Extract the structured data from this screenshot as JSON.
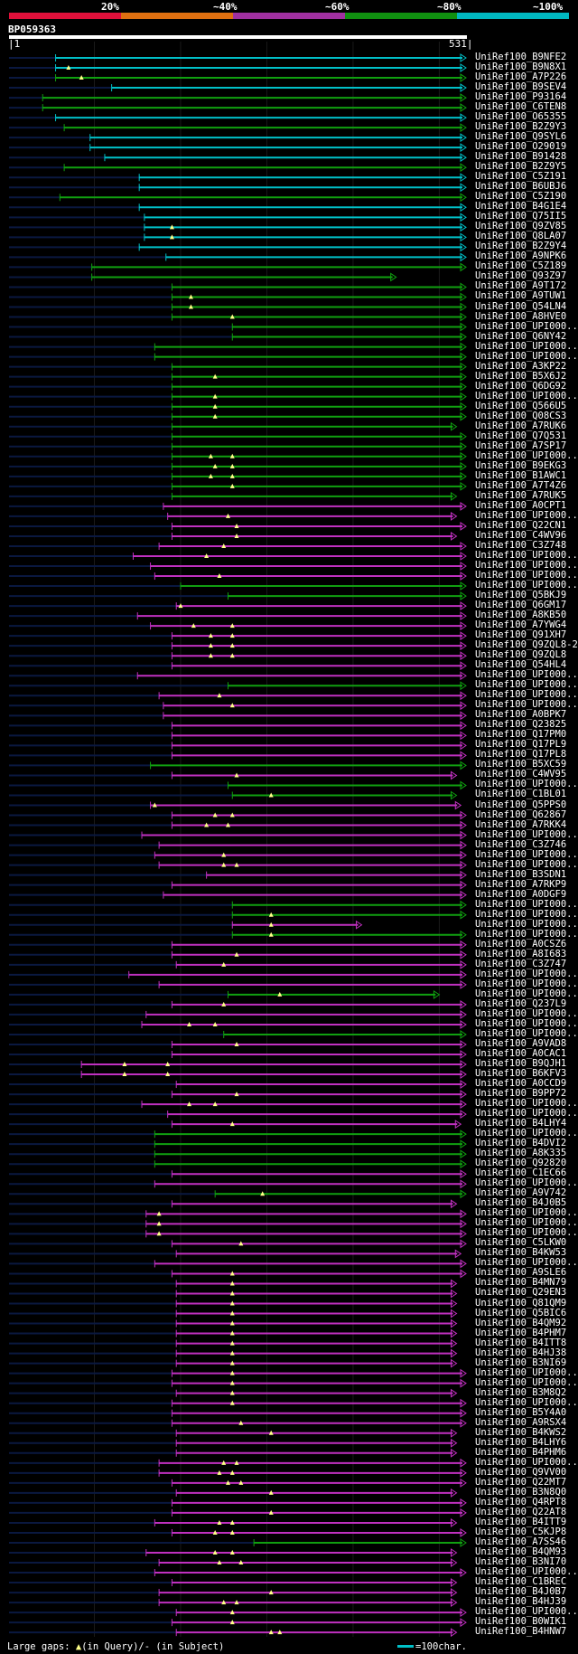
{
  "legend": {
    "labels": [
      "20%",
      "~40%",
      "~60%",
      "~80%",
      "~100%"
    ],
    "colors": [
      "#e0103a",
      "#e07010",
      "#a030a0",
      "#109010",
      "#00b8c0"
    ]
  },
  "query": {
    "name": "BP059363",
    "start": "1",
    "end": "531"
  },
  "colors": {
    "identity_colors": [
      "#00c0c8",
      "#10a010",
      "#c030c0"
    ],
    "gap_marker": "#ffff88"
  },
  "footer": {
    "gap_prefix": "Large gaps:",
    "gap_symbol": "▲",
    "gap_query_text": "(in Query)/",
    "gap_subject_symbol": "-",
    "gap_subject_text": "(in Subject)",
    "scale_text": "=100char."
  },
  "hits": [
    {
      "name": "UniRef100_B9NFE2",
      "s": 55,
      "e": 531,
      "c": 0,
      "g": []
    },
    {
      "name": "UniRef100_B9N8X1",
      "s": 55,
      "e": 531,
      "c": 0,
      "g": [
        70
      ]
    },
    {
      "name": "UniRef100_A7P226",
      "s": 55,
      "e": 531,
      "c": 1,
      "g": [
        85
      ]
    },
    {
      "name": "UniRef100_B9SEV4",
      "s": 120,
      "e": 531,
      "c": 0,
      "g": []
    },
    {
      "name": "UniRef100_P93164",
      "s": 40,
      "e": 531,
      "c": 1,
      "g": []
    },
    {
      "name": "UniRef100_C6TEN8",
      "s": 40,
      "e": 531,
      "c": 1,
      "g": []
    },
    {
      "name": "UniRef100_O65355",
      "s": 55,
      "e": 531,
      "c": 0,
      "g": []
    },
    {
      "name": "UniRef100_B2Z9Y3",
      "s": 65,
      "e": 531,
      "c": 1,
      "g": []
    },
    {
      "name": "UniRef100_Q9SYL6",
      "s": 95,
      "e": 531,
      "c": 0,
      "g": []
    },
    {
      "name": "UniRef100_O29019",
      "s": 95,
      "e": 531,
      "c": 0,
      "g": []
    },
    {
      "name": "UniRef100_B91428",
      "s": 112,
      "e": 531,
      "c": 0,
      "g": []
    },
    {
      "name": "UniRef100_B2Z9Y5",
      "s": 65,
      "e": 531,
      "c": 1,
      "g": []
    },
    {
      "name": "UniRef100_C5Z191",
      "s": 152,
      "e": 531,
      "c": 0,
      "g": []
    },
    {
      "name": "UniRef100_B6UBJ6",
      "s": 152,
      "e": 531,
      "c": 0,
      "g": []
    },
    {
      "name": "UniRef100_C5Z190",
      "s": 60,
      "e": 531,
      "c": 1,
      "g": []
    },
    {
      "name": "UniRef100_B4G1E4",
      "s": 152,
      "e": 531,
      "c": 0,
      "g": []
    },
    {
      "name": "UniRef100_Q75II5",
      "s": 158,
      "e": 531,
      "c": 0,
      "g": []
    },
    {
      "name": "UniRef100_Q9ZV85",
      "s": 158,
      "e": 531,
      "c": 0,
      "g": [
        190
      ]
    },
    {
      "name": "UniRef100_Q8LA07",
      "s": 158,
      "e": 531,
      "c": 0,
      "g": [
        190
      ]
    },
    {
      "name": "UniRef100_B2Z9Y4",
      "s": 152,
      "e": 531,
      "c": 0,
      "g": []
    },
    {
      "name": "UniRef100_A9NPK6",
      "s": 183,
      "e": 531,
      "c": 0,
      "g": []
    },
    {
      "name": "UniRef100_C5Z189",
      "s": 97,
      "e": 531,
      "c": 1,
      "g": []
    },
    {
      "name": "UniRef100_Q93Z97",
      "s": 97,
      "e": 450,
      "c": 1,
      "g": []
    },
    {
      "name": "UniRef100_A9T172",
      "s": 190,
      "e": 531,
      "c": 1,
      "g": []
    },
    {
      "name": "UniRef100_A9TUW1",
      "s": 190,
      "e": 531,
      "c": 1,
      "g": [
        212
      ]
    },
    {
      "name": "UniRef100_Q54LN4",
      "s": 190,
      "e": 531,
      "c": 1,
      "g": [
        212
      ]
    },
    {
      "name": "UniRef100_A8HVE0",
      "s": 190,
      "e": 531,
      "c": 1,
      "g": [
        260
      ]
    },
    {
      "name": "UniRef100_UPI000...",
      "s": 260,
      "e": 531,
      "c": 1,
      "g": []
    },
    {
      "name": "UniRef100_Q6NY42",
      "s": 260,
      "e": 531,
      "c": 1,
      "g": []
    },
    {
      "name": "UniRef100_UPI000...",
      "s": 170,
      "e": 531,
      "c": 1,
      "g": []
    },
    {
      "name": "UniRef100_UPI000...",
      "s": 170,
      "e": 531,
      "c": 1,
      "g": []
    },
    {
      "name": "UniRef100_A3KP22",
      "s": 190,
      "e": 531,
      "c": 1,
      "g": []
    },
    {
      "name": "UniRef100_B5X6J2",
      "s": 190,
      "e": 531,
      "c": 1,
      "g": [
        240
      ]
    },
    {
      "name": "UniRef100_Q6DG92",
      "s": 190,
      "e": 531,
      "c": 1,
      "g": []
    },
    {
      "name": "UniRef100_UPI000...",
      "s": 190,
      "e": 531,
      "c": 1,
      "g": [
        240
      ]
    },
    {
      "name": "UniRef100_Q566U5",
      "s": 190,
      "e": 531,
      "c": 1,
      "g": [
        240
      ]
    },
    {
      "name": "UniRef100_Q08CS3",
      "s": 190,
      "e": 531,
      "c": 1,
      "g": [
        240
      ]
    },
    {
      "name": "UniRef100_A7RUK6",
      "s": 190,
      "e": 520,
      "c": 1,
      "g": []
    },
    {
      "name": "UniRef100_Q7Q531",
      "s": 190,
      "e": 531,
      "c": 1,
      "g": []
    },
    {
      "name": "UniRef100_A7SP17",
      "s": 190,
      "e": 531,
      "c": 1,
      "g": []
    },
    {
      "name": "UniRef100_UPI000...",
      "s": 190,
      "e": 531,
      "c": 1,
      "g": [
        235,
        260
      ]
    },
    {
      "name": "UniRef100_B9EKG3",
      "s": 190,
      "e": 531,
      "c": 1,
      "g": [
        240,
        260
      ]
    },
    {
      "name": "UniRef100_B1AWC1",
      "s": 190,
      "e": 531,
      "c": 1,
      "g": [
        235,
        260
      ]
    },
    {
      "name": "UniRef100_A7T4Z6",
      "s": 190,
      "e": 531,
      "c": 1,
      "g": [
        260
      ]
    },
    {
      "name": "UniRef100_A7RUK5",
      "s": 190,
      "e": 520,
      "c": 1,
      "g": []
    },
    {
      "name": "UniRef100_A0CPT1",
      "s": 180,
      "e": 531,
      "c": 2,
      "g": []
    },
    {
      "name": "UniRef100_UPI000...",
      "s": 185,
      "e": 520,
      "c": 2,
      "g": [
        255
      ]
    },
    {
      "name": "UniRef100_Q22CN1",
      "s": 190,
      "e": 531,
      "c": 2,
      "g": [
        265
      ]
    },
    {
      "name": "UniRef100_C4WV96",
      "s": 190,
      "e": 520,
      "c": 2,
      "g": [
        265
      ]
    },
    {
      "name": "UniRef100_C3Z748",
      "s": 175,
      "e": 531,
      "c": 2,
      "g": [
        250
      ]
    },
    {
      "name": "UniRef100_UPI000...",
      "s": 145,
      "e": 531,
      "c": 2,
      "g": [
        230
      ]
    },
    {
      "name": "UniRef100_UPI000...",
      "s": 165,
      "e": 531,
      "c": 2,
      "g": []
    },
    {
      "name": "UniRef100_UPI000...",
      "s": 170,
      "e": 531,
      "c": 2,
      "g": [
        245
      ]
    },
    {
      "name": "UniRef100_UPI000...",
      "s": 200,
      "e": 531,
      "c": 1,
      "g": []
    },
    {
      "name": "UniRef100_Q5BKJ9",
      "s": 255,
      "e": 531,
      "c": 1,
      "g": []
    },
    {
      "name": "UniRef100_Q6GM17",
      "s": 195,
      "e": 531,
      "c": 2,
      "g": [
        200
      ]
    },
    {
      "name": "UniRef100_A8KB50",
      "s": 150,
      "e": 531,
      "c": 2,
      "g": []
    },
    {
      "name": "UniRef100_A7YWG4",
      "s": 165,
      "e": 531,
      "c": 2,
      "g": [
        215,
        260
      ]
    },
    {
      "name": "UniRef100_Q91XH7",
      "s": 190,
      "e": 531,
      "c": 2,
      "g": [
        235,
        260
      ]
    },
    {
      "name": "UniRef100_Q9ZQL8-2",
      "s": 190,
      "e": 531,
      "c": 2,
      "g": [
        235,
        260
      ]
    },
    {
      "name": "UniRef100_Q9ZQL8",
      "s": 190,
      "e": 531,
      "c": 2,
      "g": [
        235,
        260
      ]
    },
    {
      "name": "UniRef100_Q54HL4",
      "s": 190,
      "e": 531,
      "c": 2,
      "g": []
    },
    {
      "name": "UniRef100_UPI000...",
      "s": 150,
      "e": 531,
      "c": 2,
      "g": []
    },
    {
      "name": "UniRef100_UPI000...",
      "s": 255,
      "e": 531,
      "c": 1,
      "g": []
    },
    {
      "name": "UniRef100_UPI000...",
      "s": 175,
      "e": 531,
      "c": 2,
      "g": [
        245
      ]
    },
    {
      "name": "UniRef100_UPI000...",
      "s": 180,
      "e": 531,
      "c": 2,
      "g": [
        260
      ]
    },
    {
      "name": "UniRef100_A0BPK7",
      "s": 180,
      "e": 531,
      "c": 2,
      "g": []
    },
    {
      "name": "UniRef100_Q23825",
      "s": 190,
      "e": 531,
      "c": 2,
      "g": []
    },
    {
      "name": "UniRef100_Q17PM0",
      "s": 190,
      "e": 531,
      "c": 2,
      "g": []
    },
    {
      "name": "UniRef100_Q17PL9",
      "s": 190,
      "e": 531,
      "c": 2,
      "g": []
    },
    {
      "name": "UniRef100_Q17PL8",
      "s": 190,
      "e": 531,
      "c": 2,
      "g": []
    },
    {
      "name": "UniRef100_B5XC59",
      "s": 165,
      "e": 531,
      "c": 1,
      "g": []
    },
    {
      "name": "UniRef100_C4WV95",
      "s": 190,
      "e": 520,
      "c": 2,
      "g": [
        265
      ]
    },
    {
      "name": "UniRef100_UPI000...",
      "s": 255,
      "e": 531,
      "c": 1,
      "g": []
    },
    {
      "name": "UniRef100_C1BL01",
      "s": 260,
      "e": 520,
      "c": 1,
      "g": [
        305
      ]
    },
    {
      "name": "UniRef100_Q5PPS0",
      "s": 165,
      "e": 525,
      "c": 2,
      "g": [
        170
      ]
    },
    {
      "name": "UniRef100_Q62867",
      "s": 190,
      "e": 531,
      "c": 2,
      "g": [
        240,
        260
      ]
    },
    {
      "name": "UniRef100_A7RKK4",
      "s": 190,
      "e": 531,
      "c": 2,
      "g": [
        230,
        255
      ]
    },
    {
      "name": "UniRef100_UPI000...",
      "s": 155,
      "e": 531,
      "c": 2,
      "g": []
    },
    {
      "name": "UniRef100_C3Z746",
      "s": 175,
      "e": 531,
      "c": 2,
      "g": []
    },
    {
      "name": "UniRef100_UPI000...",
      "s": 170,
      "e": 531,
      "c": 2,
      "g": [
        250
      ]
    },
    {
      "name": "UniRef100_UPI000...",
      "s": 175,
      "e": 531,
      "c": 2,
      "g": [
        250,
        265
      ]
    },
    {
      "name": "UniRef100_B3SDN1",
      "s": 230,
      "e": 531,
      "c": 2,
      "g": []
    },
    {
      "name": "UniRef100_A7RKP9",
      "s": 190,
      "e": 531,
      "c": 2,
      "g": []
    },
    {
      "name": "UniRef100_A0DGF9",
      "s": 180,
      "e": 531,
      "c": 2,
      "g": []
    },
    {
      "name": "UniRef100_UPI000...",
      "s": 260,
      "e": 531,
      "c": 1,
      "g": []
    },
    {
      "name": "UniRef100_UPI000...",
      "s": 260,
      "e": 531,
      "c": 1,
      "g": [
        305
      ]
    },
    {
      "name": "UniRef100_UPI000...",
      "s": 260,
      "e": 410,
      "c": 2,
      "g": [
        305
      ]
    },
    {
      "name": "UniRef100_UPI000...",
      "s": 260,
      "e": 531,
      "c": 1,
      "g": [
        305
      ]
    },
    {
      "name": "UniRef100_A0CSZ6",
      "s": 190,
      "e": 531,
      "c": 2,
      "g": []
    },
    {
      "name": "UniRef100_A8I683",
      "s": 190,
      "e": 531,
      "c": 2,
      "g": [
        265
      ]
    },
    {
      "name": "UniRef100_C3Z747",
      "s": 195,
      "e": 531,
      "c": 2,
      "g": [
        250
      ]
    },
    {
      "name": "UniRef100_UPI000...",
      "s": 140,
      "e": 531,
      "c": 2,
      "g": []
    },
    {
      "name": "UniRef100_UPI000...",
      "s": 175,
      "e": 531,
      "c": 2,
      "g": []
    },
    {
      "name": "UniRef100_UPI000...",
      "s": 255,
      "e": 500,
      "c": 1,
      "g": [
        315
      ]
    },
    {
      "name": "UniRef100_Q237L9",
      "s": 190,
      "e": 531,
      "c": 2,
      "g": [
        250
      ]
    },
    {
      "name": "UniRef100_UPI000...",
      "s": 160,
      "e": 531,
      "c": 2,
      "g": []
    },
    {
      "name": "UniRef100_UPI000...",
      "s": 155,
      "e": 531,
      "c": 2,
      "g": [
        210,
        240
      ]
    },
    {
      "name": "UniRef100_UPI000...",
      "s": 250,
      "e": 531,
      "c": 1,
      "g": []
    },
    {
      "name": "UniRef100_A9VAD8",
      "s": 190,
      "e": 531,
      "c": 2,
      "g": [
        265
      ]
    },
    {
      "name": "UniRef100_A0CAC1",
      "s": 190,
      "e": 531,
      "c": 2,
      "g": []
    },
    {
      "name": "UniRef100_B9QJH1",
      "s": 85,
      "e": 531,
      "c": 2,
      "g": [
        135,
        185
      ]
    },
    {
      "name": "UniRef100_B6KFV3",
      "s": 85,
      "e": 531,
      "c": 2,
      "g": [
        135,
        185
      ]
    },
    {
      "name": "UniRef100_A0CCD9",
      "s": 195,
      "e": 531,
      "c": 2,
      "g": []
    },
    {
      "name": "UniRef100_B9PP72",
      "s": 190,
      "e": 531,
      "c": 2,
      "g": [
        265
      ]
    },
    {
      "name": "UniRef100_UPI000...",
      "s": 155,
      "e": 531,
      "c": 2,
      "g": [
        210,
        240
      ]
    },
    {
      "name": "UniRef100_UPI000...",
      "s": 185,
      "e": 531,
      "c": 2,
      "g": []
    },
    {
      "name": "UniRef100_B4LHY4",
      "s": 190,
      "e": 525,
      "c": 2,
      "g": [
        260
      ]
    },
    {
      "name": "UniRef100_UPI000...",
      "s": 170,
      "e": 531,
      "c": 1,
      "g": []
    },
    {
      "name": "UniRef100_B4DVI2",
      "s": 170,
      "e": 531,
      "c": 1,
      "g": []
    },
    {
      "name": "UniRef100_A8K335",
      "s": 170,
      "e": 531,
      "c": 1,
      "g": []
    },
    {
      "name": "UniRef100_Q92820",
      "s": 170,
      "e": 531,
      "c": 1,
      "g": []
    },
    {
      "name": "UniRef100_C1EC66",
      "s": 190,
      "e": 531,
      "c": 2,
      "g": []
    },
    {
      "name": "UniRef100_UPI000...",
      "s": 170,
      "e": 531,
      "c": 2,
      "g": []
    },
    {
      "name": "UniRef100_A9V742",
      "s": 240,
      "e": 531,
      "c": 1,
      "g": [
        295
      ]
    },
    {
      "name": "UniRef100_B4J0B5",
      "s": 190,
      "e": 520,
      "c": 2,
      "g": []
    },
    {
      "name": "UniRef100_UPI000...",
      "s": 160,
      "e": 531,
      "c": 2,
      "g": [
        175
      ]
    },
    {
      "name": "UniRef100_UPI000...",
      "s": 160,
      "e": 531,
      "c": 2,
      "g": [
        175
      ]
    },
    {
      "name": "UniRef100_UPI000...",
      "s": 160,
      "e": 531,
      "c": 2,
      "g": [
        175
      ]
    },
    {
      "name": "UniRef100_C5LKW0",
      "s": 190,
      "e": 531,
      "c": 2,
      "g": [
        270
      ]
    },
    {
      "name": "UniRef100_B4KW53",
      "s": 195,
      "e": 525,
      "c": 2,
      "g": []
    },
    {
      "name": "UniRef100_UPI000...",
      "s": 170,
      "e": 531,
      "c": 2,
      "g": []
    },
    {
      "name": "UniRef100_A9SLE6",
      "s": 190,
      "e": 531,
      "c": 2,
      "g": [
        260
      ]
    },
    {
      "name": "UniRef100_B4MN79",
      "s": 195,
      "e": 520,
      "c": 2,
      "g": [
        260
      ]
    },
    {
      "name": "UniRef100_Q29EN3",
      "s": 195,
      "e": 520,
      "c": 2,
      "g": [
        260
      ]
    },
    {
      "name": "UniRef100_Q81QM9",
      "s": 195,
      "e": 520,
      "c": 2,
      "g": [
        260
      ]
    },
    {
      "name": "UniRef100_Q5BIC6",
      "s": 195,
      "e": 520,
      "c": 2,
      "g": [
        260
      ]
    },
    {
      "name": "UniRef100_B4QM92",
      "s": 195,
      "e": 520,
      "c": 2,
      "g": [
        260
      ]
    },
    {
      "name": "UniRef100_B4PHM7",
      "s": 195,
      "e": 520,
      "c": 2,
      "g": [
        260
      ]
    },
    {
      "name": "UniRef100_B4ITT8",
      "s": 195,
      "e": 520,
      "c": 2,
      "g": [
        260
      ]
    },
    {
      "name": "UniRef100_B4HJ38",
      "s": 195,
      "e": 520,
      "c": 2,
      "g": [
        260
      ]
    },
    {
      "name": "UniRef100_B3NI69",
      "s": 195,
      "e": 520,
      "c": 2,
      "g": [
        260
      ]
    },
    {
      "name": "UniRef100_UPI000...",
      "s": 190,
      "e": 531,
      "c": 2,
      "g": [
        260
      ]
    },
    {
      "name": "UniRef100_UPI000...",
      "s": 190,
      "e": 531,
      "c": 2,
      "g": [
        260
      ]
    },
    {
      "name": "UniRef100_B3M8Q2",
      "s": 195,
      "e": 520,
      "c": 2,
      "g": [
        260
      ]
    },
    {
      "name": "UniRef100_UPI000...",
      "s": 190,
      "e": 531,
      "c": 2,
      "g": [
        260
      ]
    },
    {
      "name": "UniRef100_B5Y4A0",
      "s": 190,
      "e": 531,
      "c": 2,
      "g": []
    },
    {
      "name": "UniRef100_A9RSX4",
      "s": 190,
      "e": 531,
      "c": 2,
      "g": [
        270
      ]
    },
    {
      "name": "UniRef100_B4KWS2",
      "s": 195,
      "e": 520,
      "c": 2,
      "g": [
        305
      ]
    },
    {
      "name": "UniRef100_B4LHY6",
      "s": 195,
      "e": 520,
      "c": 2,
      "g": []
    },
    {
      "name": "UniRef100_B4PHM6",
      "s": 195,
      "e": 520,
      "c": 2,
      "g": []
    },
    {
      "name": "UniRef100_UPI000...",
      "s": 175,
      "e": 531,
      "c": 2,
      "g": [
        250,
        265
      ]
    },
    {
      "name": "UniRef100_Q9VV00",
      "s": 175,
      "e": 531,
      "c": 2,
      "g": [
        245,
        260
      ]
    },
    {
      "name": "UniRef100_Q22MT7",
      "s": 190,
      "e": 531,
      "c": 2,
      "g": [
        255,
        270
      ]
    },
    {
      "name": "UniRef100_B3N8Q0",
      "s": 195,
      "e": 520,
      "c": 2,
      "g": [
        305
      ]
    },
    {
      "name": "UniRef100_Q4RPT8",
      "s": 190,
      "e": 531,
      "c": 2,
      "g": []
    },
    {
      "name": "UniRef100_Q22AT8",
      "s": 190,
      "e": 531,
      "c": 2,
      "g": [
        305
      ]
    },
    {
      "name": "UniRef100_B4ITT9",
      "s": 170,
      "e": 520,
      "c": 2,
      "g": [
        245,
        260
      ]
    },
    {
      "name": "UniRef100_C5KJP8",
      "s": 190,
      "e": 531,
      "c": 2,
      "g": [
        240,
        260
      ]
    },
    {
      "name": "UniRef100_A7SS46",
      "s": 285,
      "e": 531,
      "c": 1,
      "g": []
    },
    {
      "name": "UniRef100_B4QM93",
      "s": 160,
      "e": 520,
      "c": 2,
      "g": [
        240,
        260
      ]
    },
    {
      "name": "UniRef100_B3NI70",
      "s": 175,
      "e": 520,
      "c": 2,
      "g": [
        245,
        270
      ]
    },
    {
      "name": "UniRef100_UPI000...",
      "s": 170,
      "e": 531,
      "c": 2,
      "g": []
    },
    {
      "name": "UniRef100_C1BREC",
      "s": 190,
      "e": 520,
      "c": 2,
      "g": []
    },
    {
      "name": "UniRef100_B4J0B7",
      "s": 175,
      "e": 520,
      "c": 2,
      "g": [
        305
      ]
    },
    {
      "name": "UniRef100_B4HJ39",
      "s": 175,
      "e": 520,
      "c": 2,
      "g": [
        250,
        265
      ]
    },
    {
      "name": "UniRef100_UPI000...",
      "s": 195,
      "e": 531,
      "c": 2,
      "g": [
        260
      ]
    },
    {
      "name": "UniRef100_B0WIK1",
      "s": 190,
      "e": 531,
      "c": 2,
      "g": [
        260
      ]
    },
    {
      "name": "UniRef100_B4HNW7",
      "s": 195,
      "e": 520,
      "c": 2,
      "g": [
        305,
        315
      ]
    }
  ]
}
